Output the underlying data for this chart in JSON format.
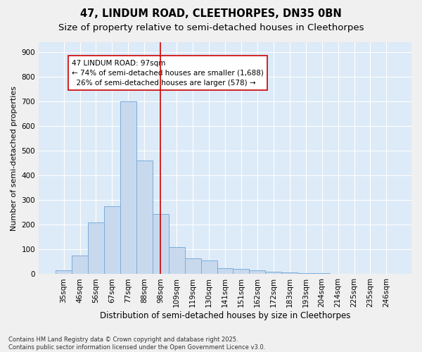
{
  "title1": "47, LINDUM ROAD, CLEETHORPES, DN35 0BN",
  "title2": "Size of property relative to semi-detached houses in Cleethorpes",
  "xlabel": "Distribution of semi-detached houses by size in Cleethorpes",
  "ylabel": "Number of semi-detached properties",
  "categories": [
    "35sqm",
    "46sqm",
    "56sqm",
    "67sqm",
    "77sqm",
    "88sqm",
    "98sqm",
    "109sqm",
    "119sqm",
    "130sqm",
    "141sqm",
    "151sqm",
    "162sqm",
    "172sqm",
    "183sqm",
    "193sqm",
    "204sqm",
    "214sqm",
    "225sqm",
    "235sqm",
    "246sqm"
  ],
  "values": [
    15,
    75,
    210,
    275,
    700,
    460,
    245,
    110,
    65,
    55,
    25,
    20,
    15,
    10,
    8,
    5,
    4,
    2,
    1,
    1,
    1
  ],
  "bar_color": "#c8d9ee",
  "bar_edge_color": "#7aaddb",
  "vline_color": "#cc0000",
  "annotation_line1": "47 LINDUM ROAD: 97sqm",
  "annotation_line2": "← 74% of semi-detached houses are smaller (1,688)",
  "annotation_line3": "  26% of semi-detached houses are larger (578) →",
  "annotation_box_color": "#ffffff",
  "annotation_box_edge": "#cc0000",
  "ylim": [
    0,
    940
  ],
  "yticks": [
    0,
    100,
    200,
    300,
    400,
    500,
    600,
    700,
    800,
    900
  ],
  "background_color": "#ddeaf7",
  "plot_bg_color": "#ddeaf7",
  "grid_color": "#ffffff",
  "footer": "Contains HM Land Registry data © Crown copyright and database right 2025.\nContains public sector information licensed under the Open Government Licence v3.0.",
  "title1_fontsize": 10.5,
  "title2_fontsize": 9.5,
  "xlabel_fontsize": 8.5,
  "ylabel_fontsize": 8,
  "tick_fontsize": 7.5,
  "annotation_fontsize": 7.5,
  "footer_fontsize": 6
}
